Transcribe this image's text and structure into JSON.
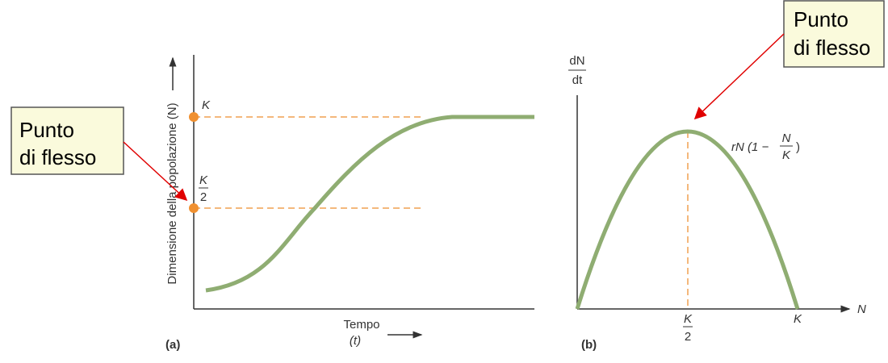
{
  "callouts": [
    {
      "lines": [
        "Punto",
        "di flesso"
      ]
    },
    {
      "lines": [
        "Punto",
        "di flesso"
      ]
    }
  ],
  "panel_a": {
    "label": "(a)",
    "y_axis_label": "Dimensione della popolazione (N)",
    "k_label": "K",
    "half_k": {
      "numerator": "K",
      "denominator": "2"
    },
    "x_axis_label": "Tempo",
    "x_axis_symbol": "(t)"
  },
  "panel_b": {
    "label": "(b)",
    "y_axis": {
      "numerator": "dN",
      "denominator": "dt"
    },
    "formula": {
      "prefix": "rN (1 −",
      "numerator": "N",
      "denominator": "K",
      "suffix": ")"
    },
    "half_k": {
      "numerator": "K",
      "denominator": "2"
    },
    "k_label": "K",
    "x_axis_label": "N"
  }
}
